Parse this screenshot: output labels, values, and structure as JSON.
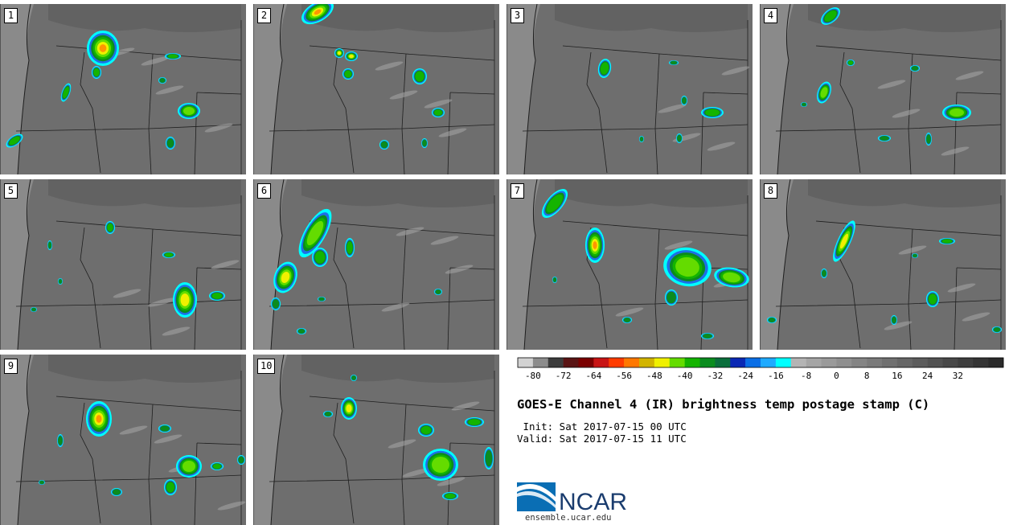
{
  "title": "GOES-E Channel 4 (IR) brightness temp postage stamp (C)",
  "init_line": " Init: Sat 2017-07-15 00 UTC",
  "valid_line": "Valid: Sat 2017-07-15 11 UTC",
  "logo_text": "NCAR",
  "site_url": "ensemble.ucar.edu",
  "stamps": [
    {
      "label": "1"
    },
    {
      "label": "2"
    },
    {
      "label": "3"
    },
    {
      "label": "4"
    },
    {
      "label": "5"
    },
    {
      "label": "6"
    },
    {
      "label": "7"
    },
    {
      "label": "8"
    },
    {
      "label": "9"
    },
    {
      "label": "10"
    }
  ],
  "colorbar": {
    "units": "C",
    "tick_labels": [
      "-80",
      "-72",
      "-64",
      "-56",
      "-48",
      "-40",
      "-32",
      "-24",
      "-16",
      "-8",
      "0",
      "8",
      "16",
      "24",
      "32"
    ],
    "colors": [
      "#d2d2d2",
      "#8c8c8c",
      "#3c3c3c",
      "#5a1414",
      "#7a0000",
      "#c81414",
      "#ff3c00",
      "#ff7800",
      "#d2b400",
      "#f0f000",
      "#64dc00",
      "#14b400",
      "#0a8c1e",
      "#0a6e3c",
      "#0a28b4",
      "#0a6ee6",
      "#1eaaff",
      "#00ffff",
      "#b4b4b4",
      "#a5a5a5",
      "#9a9a9a",
      "#8f8f8f",
      "#848484",
      "#7a7a7a",
      "#707070",
      "#666666",
      "#5c5c5c",
      "#525252",
      "#484848",
      "#3e3e3e",
      "#343434",
      "#2a2a2a"
    ]
  }
}
